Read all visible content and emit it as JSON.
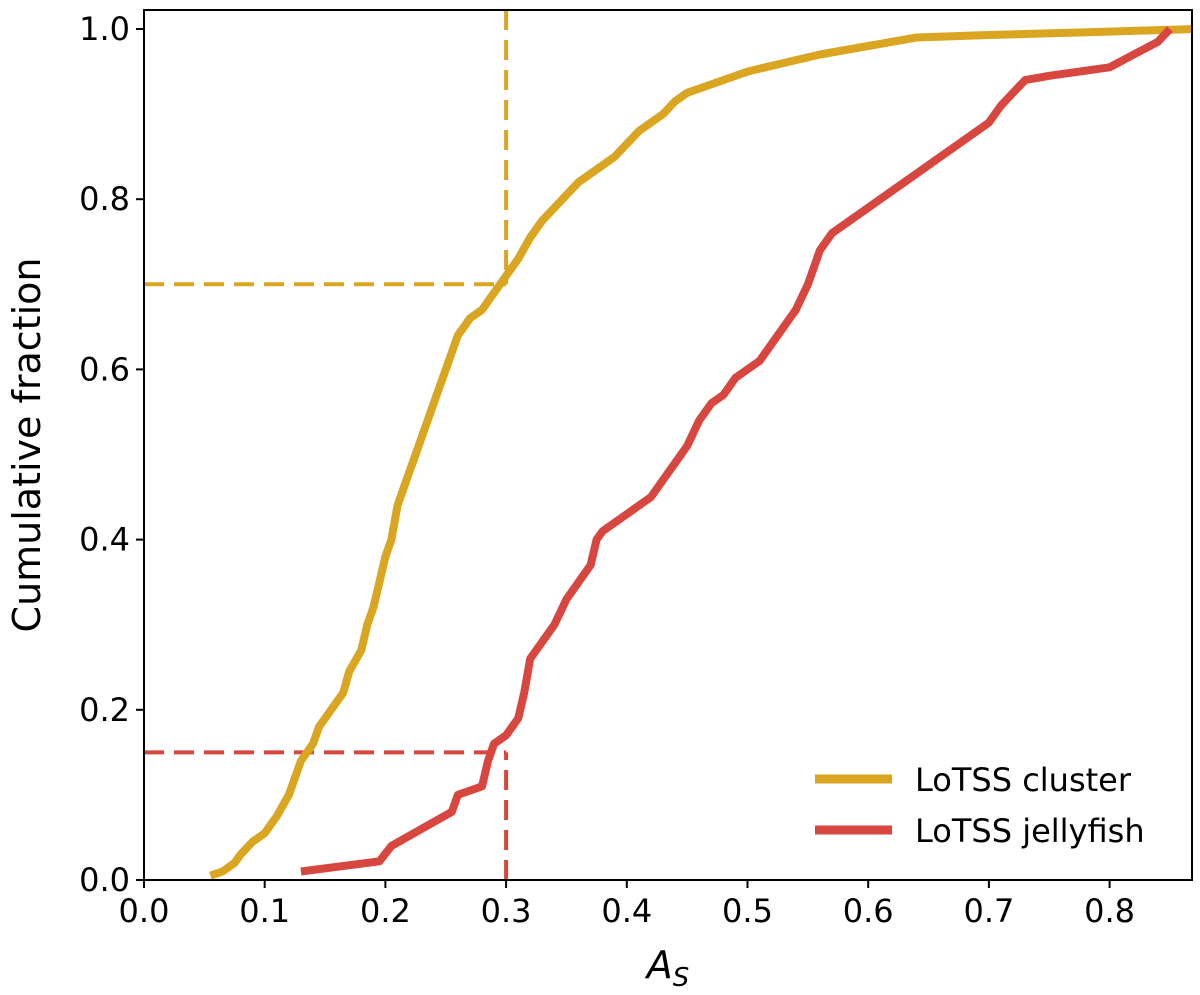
{
  "chart_data": {
    "type": "line",
    "title": "",
    "xlabel": "A",
    "xlabel_sub": "S",
    "ylabel": "Cumulative fraction",
    "xlim": [
      0.0,
      0.87
    ],
    "ylim": [
      0.0,
      1.02
    ],
    "xticks": [
      0.0,
      0.1,
      0.2,
      0.3,
      0.4,
      0.5,
      0.6,
      0.7,
      0.8
    ],
    "xtick_labels": [
      "0.0",
      "0.1",
      "0.2",
      "0.3",
      "0.4",
      "0.5",
      "0.6",
      "0.7",
      "0.8"
    ],
    "yticks": [
      0.0,
      0.2,
      0.4,
      0.6,
      0.8,
      1.0
    ],
    "ytick_labels": [
      "0.0",
      "0.2",
      "0.4",
      "0.6",
      "0.8",
      "1.0"
    ],
    "legend_position": "bottom-right",
    "series": [
      {
        "name": "LoTSS cluster",
        "color": "#DAA520",
        "x": [
          0.055,
          0.065,
          0.075,
          0.08,
          0.09,
          0.1,
          0.11,
          0.12,
          0.125,
          0.13,
          0.14,
          0.145,
          0.155,
          0.165,
          0.17,
          0.18,
          0.185,
          0.19,
          0.195,
          0.2,
          0.205,
          0.21,
          0.215,
          0.22,
          0.225,
          0.23,
          0.235,
          0.24,
          0.245,
          0.25,
          0.255,
          0.26,
          0.265,
          0.27,
          0.28,
          0.29,
          0.295,
          0.3,
          0.31,
          0.32,
          0.33,
          0.34,
          0.35,
          0.36,
          0.37,
          0.38,
          0.39,
          0.4,
          0.41,
          0.42,
          0.43,
          0.44,
          0.45,
          0.46,
          0.48,
          0.5,
          0.53,
          0.56,
          0.6,
          0.64,
          0.7,
          0.8,
          0.87
        ],
        "y": [
          0.005,
          0.01,
          0.02,
          0.03,
          0.045,
          0.055,
          0.075,
          0.1,
          0.12,
          0.14,
          0.16,
          0.18,
          0.2,
          0.22,
          0.245,
          0.27,
          0.3,
          0.32,
          0.35,
          0.38,
          0.4,
          0.44,
          0.46,
          0.48,
          0.5,
          0.52,
          0.54,
          0.56,
          0.58,
          0.6,
          0.62,
          0.64,
          0.65,
          0.66,
          0.67,
          0.69,
          0.7,
          0.71,
          0.73,
          0.755,
          0.775,
          0.79,
          0.805,
          0.82,
          0.83,
          0.84,
          0.85,
          0.865,
          0.88,
          0.89,
          0.9,
          0.915,
          0.925,
          0.93,
          0.94,
          0.95,
          0.96,
          0.97,
          0.98,
          0.99,
          0.993,
          0.997,
          1.0
        ]
      },
      {
        "name": "LoTSS jellyfish",
        "color": "#D8473F",
        "x": [
          0.13,
          0.195,
          0.205,
          0.23,
          0.255,
          0.26,
          0.28,
          0.285,
          0.29,
          0.3,
          0.31,
          0.315,
          0.32,
          0.33,
          0.34,
          0.35,
          0.36,
          0.37,
          0.375,
          0.38,
          0.39,
          0.4,
          0.42,
          0.43,
          0.44,
          0.45,
          0.46,
          0.47,
          0.48,
          0.49,
          0.5,
          0.51,
          0.52,
          0.53,
          0.54,
          0.55,
          0.56,
          0.57,
          0.58,
          0.6,
          0.62,
          0.64,
          0.66,
          0.68,
          0.7,
          0.71,
          0.72,
          0.73,
          0.75,
          0.8,
          0.82,
          0.84,
          0.85
        ],
        "y": [
          0.01,
          0.022,
          0.04,
          0.06,
          0.08,
          0.1,
          0.11,
          0.14,
          0.16,
          0.17,
          0.19,
          0.22,
          0.26,
          0.28,
          0.3,
          0.33,
          0.35,
          0.37,
          0.4,
          0.41,
          0.42,
          0.43,
          0.45,
          0.47,
          0.49,
          0.51,
          0.54,
          0.56,
          0.57,
          0.59,
          0.6,
          0.61,
          0.63,
          0.65,
          0.67,
          0.7,
          0.74,
          0.76,
          0.77,
          0.79,
          0.81,
          0.83,
          0.85,
          0.87,
          0.89,
          0.91,
          0.925,
          0.94,
          0.945,
          0.955,
          0.97,
          0.985,
          1.0
        ]
      }
    ],
    "reference_lines": [
      {
        "name": "cluster-reference",
        "color": "#DAA520",
        "x": 0.3,
        "y": 0.7,
        "x_from": "top",
        "y_from": "left"
      },
      {
        "name": "jellyfish-reference",
        "color": "#D8473F",
        "x": 0.3,
        "y": 0.15,
        "x_from": "bottom",
        "y_from": "left"
      }
    ]
  }
}
